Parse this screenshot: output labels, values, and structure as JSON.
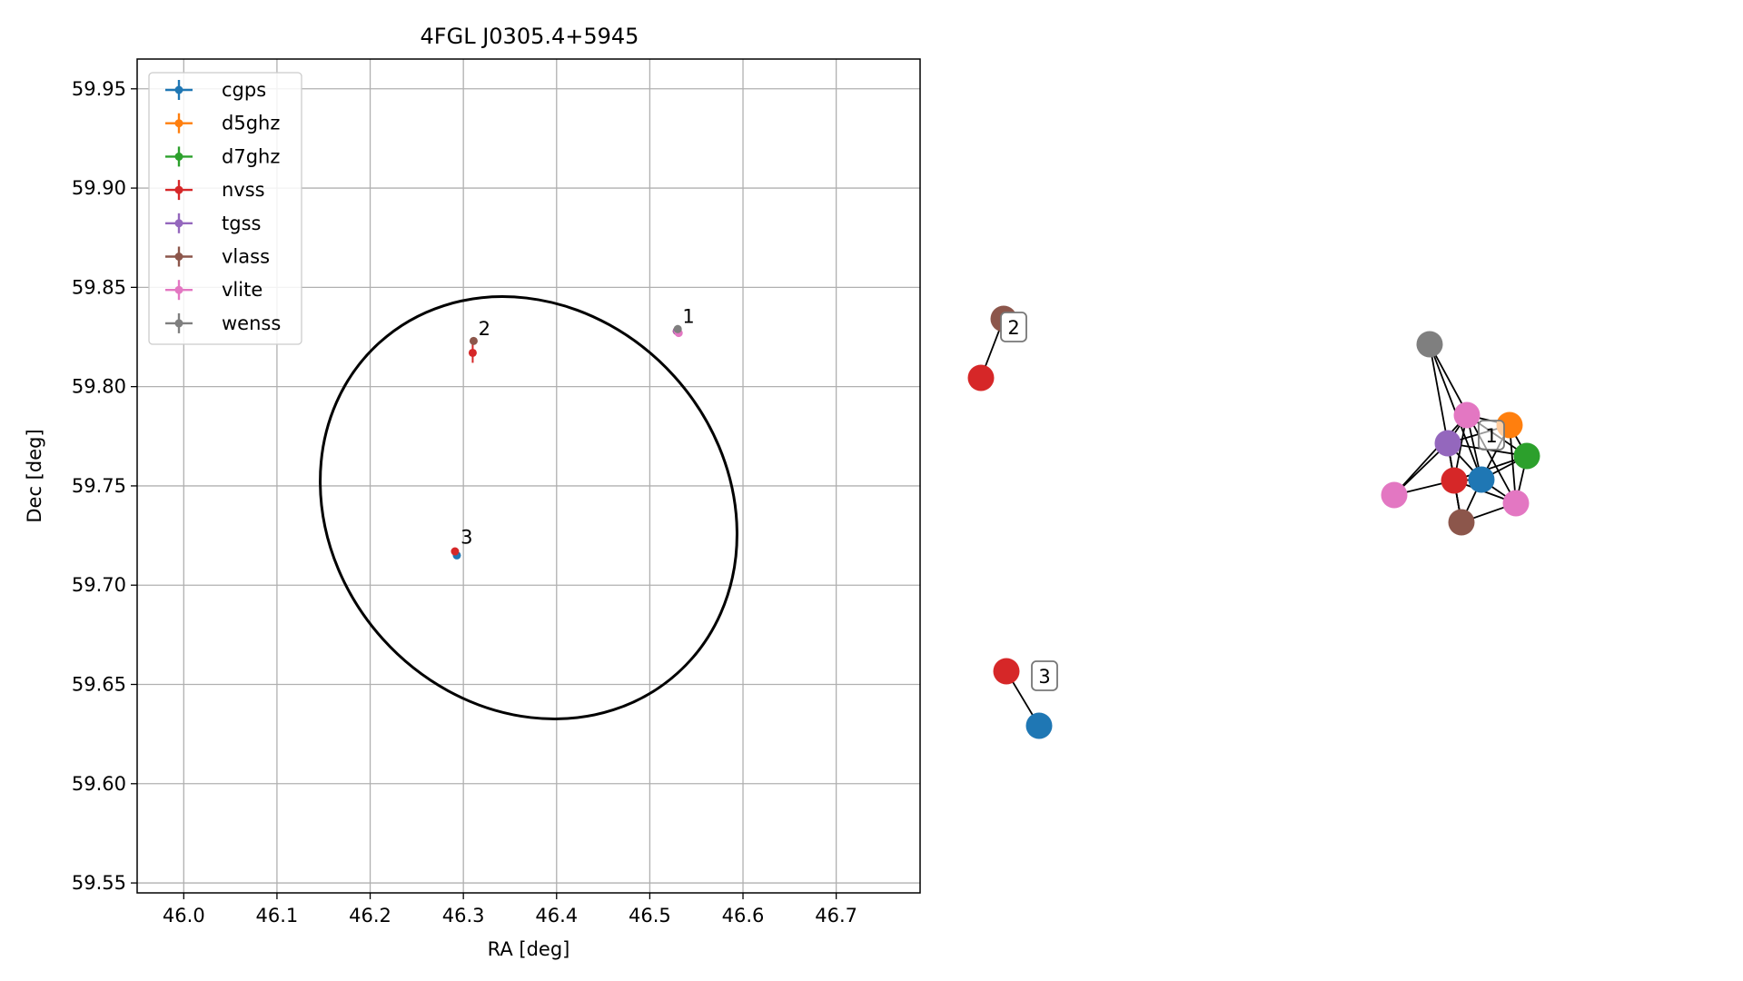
{
  "chart_data": [
    {
      "type": "scatter",
      "title": "4FGL J0305.4+5945",
      "xlabel": "RA [deg]",
      "ylabel": "Dec [deg]",
      "xlim": [
        45.95,
        46.79
      ],
      "ylim": [
        59.545,
        59.965
      ],
      "xticks": [
        46.0,
        46.1,
        46.2,
        46.3,
        46.4,
        46.5,
        46.6,
        46.7
      ],
      "yticks": [
        59.55,
        59.6,
        59.65,
        59.7,
        59.75,
        59.8,
        59.85,
        59.9,
        59.95
      ],
      "grid": true,
      "legend_position": "top-left",
      "series": [
        {
          "name": "cgps",
          "color": "#1f77b4",
          "points": [
            {
              "x": 46.293,
              "y": 59.715,
              "xerr": 0.001,
              "yerr": 0.001
            }
          ]
        },
        {
          "name": "d5ghz",
          "color": "#ff7f0e",
          "points": [
            {
              "x": 46.529,
              "y": 59.828,
              "xerr": 0.001,
              "yerr": 0.001
            }
          ]
        },
        {
          "name": "d7ghz",
          "color": "#2ca02c",
          "points": [
            {
              "x": 46.53,
              "y": 59.828,
              "xerr": 0.001,
              "yerr": 0.001
            }
          ]
        },
        {
          "name": "nvss",
          "color": "#d62728",
          "points": [
            {
              "x": 46.529,
              "y": 59.828,
              "xerr": 0.001,
              "yerr": 0.001
            },
            {
              "x": 46.31,
              "y": 59.817,
              "xerr": 0.001,
              "yerr": 0.005
            },
            {
              "x": 46.291,
              "y": 59.717,
              "xerr": 0.001,
              "yerr": 0.001
            }
          ]
        },
        {
          "name": "tgss",
          "color": "#9467bd",
          "points": [
            {
              "x": 46.529,
              "y": 59.828,
              "xerr": 0.001,
              "yerr": 0.001
            }
          ]
        },
        {
          "name": "vlass",
          "color": "#8c564b",
          "points": [
            {
              "x": 46.53,
              "y": 59.828,
              "xerr": 0.001,
              "yerr": 0.001
            },
            {
              "x": 46.311,
              "y": 59.823,
              "xerr": 0.001,
              "yerr": 0.001
            }
          ]
        },
        {
          "name": "vlite",
          "color": "#e377c2",
          "points": [
            {
              "x": 46.53,
              "y": 59.828,
              "xerr": 0.001,
              "yerr": 0.001
            },
            {
              "x": 46.531,
              "y": 59.827,
              "xerr": 0.001,
              "yerr": 0.001
            }
          ]
        },
        {
          "name": "wenss",
          "color": "#7f7f7f",
          "points": [
            {
              "x": 46.53,
              "y": 59.829,
              "xerr": 0.002,
              "yerr": 0.002
            }
          ]
        }
      ],
      "annotations": [
        {
          "text": "1",
          "x": 46.535,
          "y": 59.832
        },
        {
          "text": "2",
          "x": 46.316,
          "y": 59.826
        },
        {
          "text": "3",
          "x": 46.297,
          "y": 59.721
        }
      ],
      "ellipse": {
        "center": [
          46.37,
          59.755
        ],
        "edge_color": "#000000"
      }
    },
    {
      "type": "network",
      "groups": [
        {
          "label": "1",
          "nodes": [
            {
              "series": "wenss",
              "color": "#7f7f7f"
            },
            {
              "series": "vlite",
              "color": "#e377c2"
            },
            {
              "series": "d5ghz",
              "color": "#ff7f0e"
            },
            {
              "series": "tgss",
              "color": "#9467bd"
            },
            {
              "series": "d7ghz",
              "color": "#2ca02c"
            },
            {
              "series": "vlite",
              "color": "#e377c2"
            },
            {
              "series": "nvss",
              "color": "#d62728"
            },
            {
              "series": "cgps",
              "color": "#1f77b4"
            },
            {
              "series": "vlite",
              "color": "#e377c2"
            },
            {
              "series": "vlass",
              "color": "#8c564b"
            }
          ]
        },
        {
          "label": "2",
          "nodes": [
            {
              "series": "vlass",
              "color": "#8c564b"
            },
            {
              "series": "nvss",
              "color": "#d62728"
            }
          ]
        },
        {
          "label": "3",
          "nodes": [
            {
              "series": "nvss",
              "color": "#d62728"
            },
            {
              "series": "cgps",
              "color": "#1f77b4"
            }
          ]
        }
      ]
    }
  ]
}
